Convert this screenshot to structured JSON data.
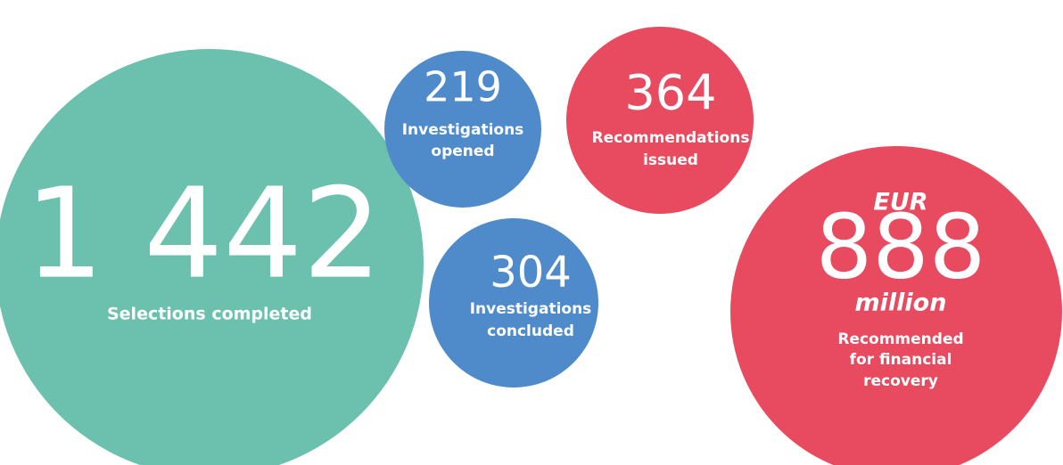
{
  "bubbles": [
    {
      "value": "1 442",
      "label": [
        "Selections completed"
      ]
    },
    {
      "value": "219",
      "label": [
        "Investigations",
        "opened"
      ]
    },
    {
      "value": "364",
      "label": [
        "Recommendations",
        "issued"
      ]
    },
    {
      "value": "304",
      "label": [
        "Investigations",
        "concluded"
      ]
    },
    {
      "prefix": "EUR",
      "value": "888",
      "suffix": "million",
      "label": [
        "Recommended",
        "for financial",
        "recovery"
      ]
    }
  ]
}
